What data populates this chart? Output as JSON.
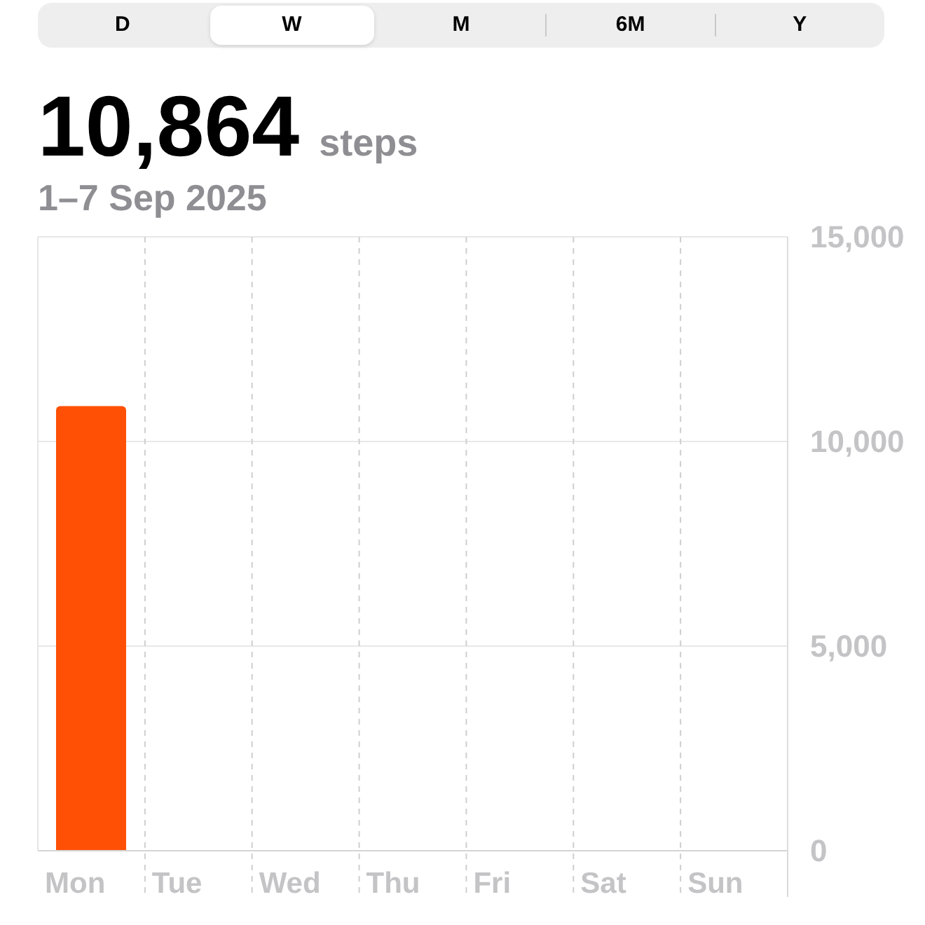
{
  "chart_data": {
    "type": "bar",
    "title": "10,864 steps",
    "subtitle": "1–7 Sep 2025",
    "categories": [
      "Mon",
      "Tue",
      "Wed",
      "Thu",
      "Fri",
      "Sat",
      "Sun"
    ],
    "values": [
      10864,
      null,
      null,
      null,
      null,
      null,
      null
    ],
    "color": "#ff5005",
    "ylim": [
      0,
      15000
    ],
    "yticks": [
      {
        "value": 0,
        "label": "0"
      },
      {
        "value": 5000,
        "label": "5,000"
      },
      {
        "value": 10000,
        "label": "10,000"
      },
      {
        "value": 15000,
        "label": "15,000"
      }
    ],
    "grid": true,
    "annotations": [
      "D",
      "W",
      "M",
      "6M",
      "Y"
    ]
  }
}
